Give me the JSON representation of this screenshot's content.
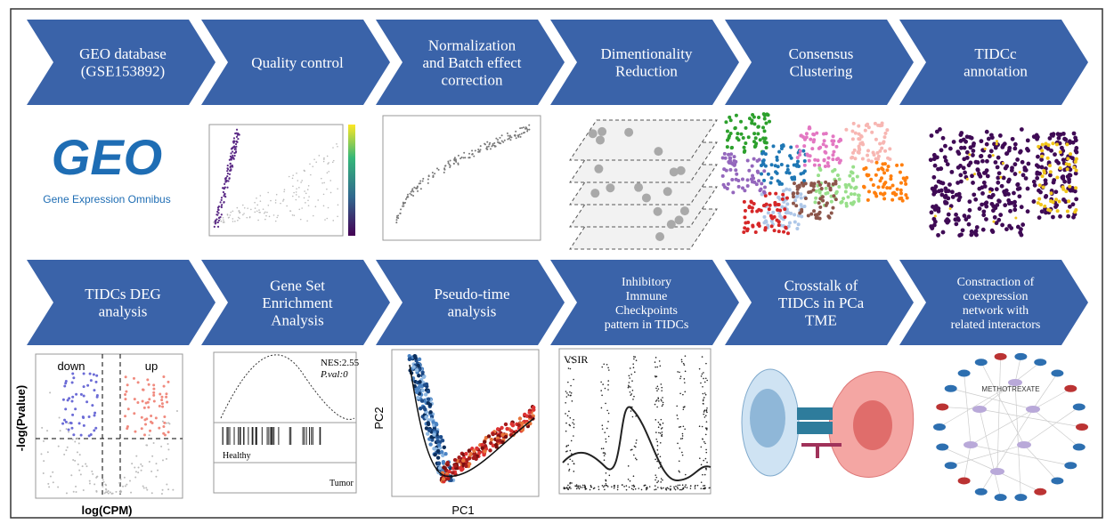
{
  "steps": [
    {
      "lines": [
        "GEO database",
        "(GSE153892)"
      ]
    },
    {
      "lines": [
        "Quality control"
      ]
    },
    {
      "lines": [
        "Normalization",
        "and Batch effect",
        "correction"
      ]
    },
    {
      "lines": [
        "Dimentionality",
        "Reduction"
      ]
    },
    {
      "lines": [
        "Consensus",
        "Clustering"
      ]
    },
    {
      "lines": [
        "TIDCc",
        "annotation"
      ]
    },
    {
      "lines": [
        "TIDCs DEG",
        "analysis"
      ]
    },
    {
      "lines": [
        "Gene Set",
        "Enrichment",
        "Analysis"
      ]
    },
    {
      "lines": [
        "Pseudo-time",
        "analysis"
      ]
    },
    {
      "lines": [
        "Inhibitory",
        "Immune",
        "Checkpoints",
        "pattern in TIDCs"
      ]
    },
    {
      "lines": [
        "Crosstalk of",
        "TIDCs in PCa",
        "TME"
      ]
    },
    {
      "lines": [
        "Constraction of",
        "coexpression",
        "network with",
        "related interactors"
      ]
    }
  ],
  "panels": {
    "geo": {
      "logo": "GEO",
      "caption": "Gene Expression Omnibus"
    },
    "volcano": {
      "down": "down",
      "up": "up",
      "y_label": "-log(Pvalue)",
      "x_label": "log(CPM)"
    },
    "gsea": {
      "nes": "NES:2.55",
      "pval": "P.val:0",
      "left": "Healthy",
      "right": "Tumor"
    },
    "pseudotime": {
      "y_label": "PC2",
      "x_label": "PC1"
    },
    "checkpoint": {
      "gene": "VSIR"
    },
    "network": {
      "center": "METHOTREXATE"
    }
  }
}
